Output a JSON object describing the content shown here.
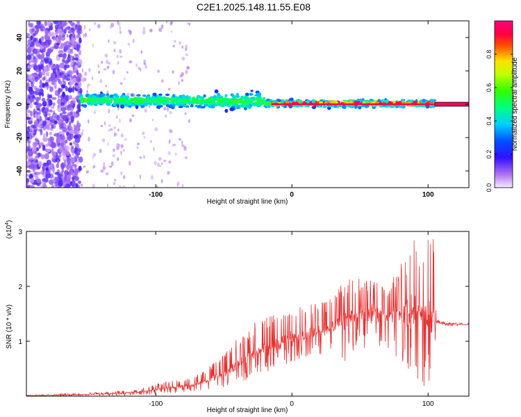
{
  "figure": {
    "title": "C2E1.2025.148.11.55.E08"
  },
  "chart_data": [
    {
      "type": "heatmap",
      "title": "",
      "xlabel": "Height of straight line (km)",
      "ylabel": "Frequency (Hz)",
      "xlim": [
        -195,
        130
      ],
      "ylim": [
        -50,
        50
      ],
      "xticks": [
        -100,
        0,
        100
      ],
      "yticks": [
        -40,
        -20,
        0,
        20,
        40
      ],
      "colorbar": {
        "label": "Normalized spectral amplitude",
        "range": [
          0,
          1
        ],
        "ticks": [
          0.0,
          0.2,
          0.4,
          0.6,
          0.8
        ],
        "colormap": "rainbow (violet-blue-cyan-green-yellow-red-magenta)"
      },
      "features": {
        "noise_region_x": [
          -195,
          -155
        ],
        "signal_band_x": [
          -155,
          105
        ],
        "signal_center_hz": 0,
        "strong_line_x": [
          -15,
          105
        ],
        "extrapolated_line_x": [
          105,
          130
        ]
      },
      "grid": false,
      "legend": "none"
    },
    {
      "type": "line",
      "title": "",
      "xlabel": "Height of straight line (km)",
      "ylabel": "SNR (10 * v/v)",
      "y_multiplier": "(x10^4)",
      "y_multiplier_base": "(x10",
      "y_multiplier_exp": "4",
      "y_multiplier_close": ")",
      "xlim": [
        -195,
        130
      ],
      "ylim": [
        0,
        3.0
      ],
      "xticks": [
        -100,
        0,
        100
      ],
      "yticks": [
        1,
        2,
        3
      ],
      "color": "#e83030",
      "series": [
        {
          "x": [
            -195,
            -170,
            -150,
            -130,
            -110,
            -100,
            -90,
            -80,
            -70,
            -60,
            -50,
            -40,
            -30,
            -20,
            -10,
            0,
            10,
            20,
            30,
            40,
            50,
            60,
            70,
            80,
            90,
            95,
            100,
            104,
            106,
            110,
            120,
            130
          ],
          "y": [
            0.01,
            0.02,
            0.03,
            0.05,
            0.08,
            0.12,
            0.16,
            0.18,
            0.22,
            0.3,
            0.4,
            0.55,
            0.75,
            0.85,
            0.95,
            1.05,
            1.1,
            1.15,
            1.25,
            1.4,
            1.45,
            1.5,
            1.45,
            1.5,
            1.55,
            1.5,
            1.5,
            1.45,
            1.35,
            1.32,
            1.31,
            1.3
          ],
          "envelope_max": [
            0.02,
            0.04,
            0.06,
            0.09,
            0.14,
            0.22,
            0.28,
            0.34,
            0.4,
            0.55,
            0.8,
            1.05,
            1.3,
            1.45,
            1.5,
            1.7,
            1.65,
            1.7,
            1.8,
            2.2,
            2.15,
            2.1,
            2.0,
            2.4,
            2.9,
            2.95,
            3.0,
            2.9,
            1.4,
            1.36,
            1.34,
            1.33
          ],
          "envelope_min": [
            0.0,
            0.0,
            0.01,
            0.01,
            0.02,
            0.03,
            0.05,
            0.06,
            0.08,
            0.1,
            0.12,
            0.2,
            0.3,
            0.4,
            0.55,
            0.6,
            0.7,
            0.75,
            0.85,
            0.6,
            0.8,
            0.9,
            0.85,
            0.6,
            0.2,
            0.1,
            0.05,
            0.1,
            1.3,
            1.28,
            1.27,
            1.26
          ]
        }
      ],
      "grid": false,
      "legend": "none"
    }
  ]
}
